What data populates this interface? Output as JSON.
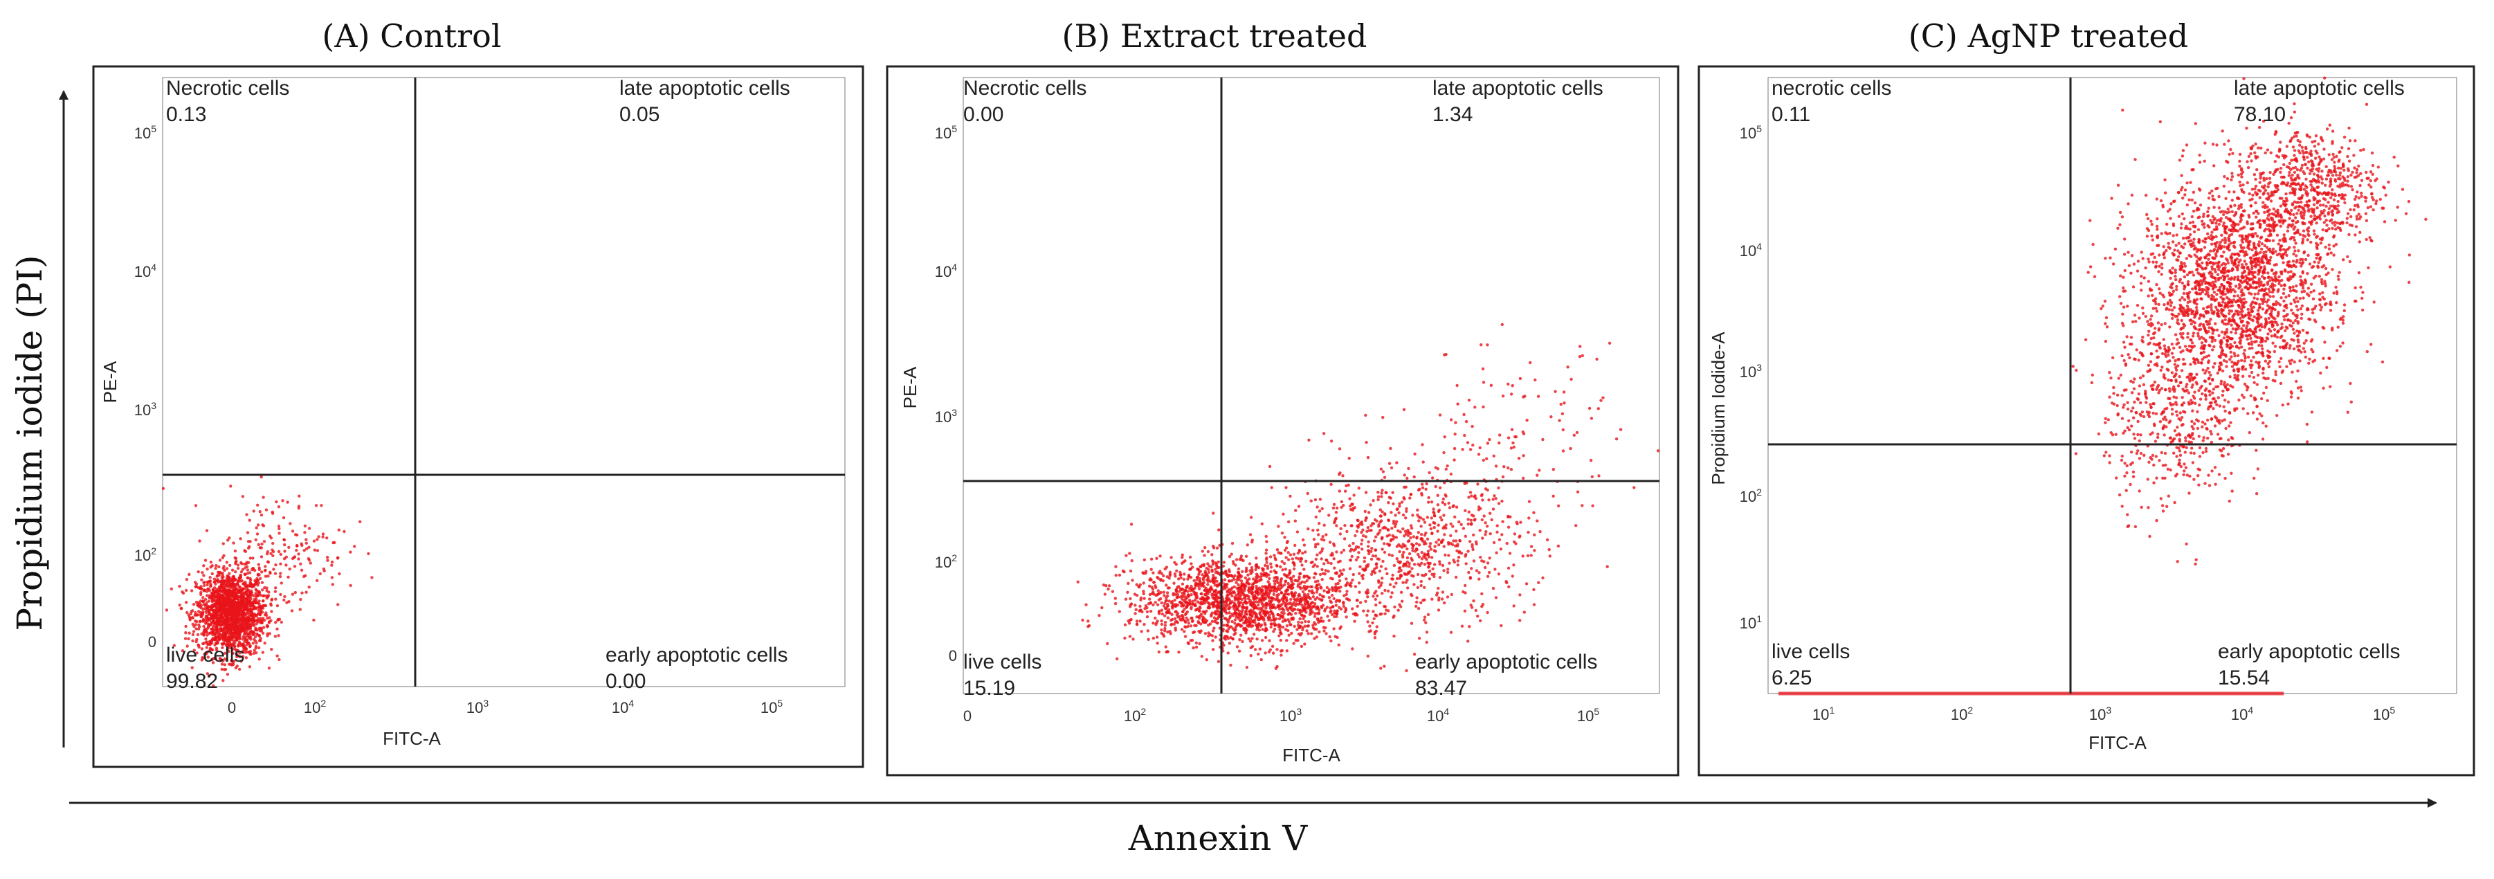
{
  "figure": {
    "global_xlabel": "Annexin V",
    "global_ylabel": "Propidium iodide (PI)"
  },
  "chart_data": [
    {
      "type": "scatter",
      "title": "(A) Control",
      "xlabel": "FITC-A",
      "ylabel": "PE-A",
      "x_ticks": [
        {
          "base": "0",
          "exp": ""
        },
        {
          "base": "10",
          "exp": "2"
        },
        {
          "base": "10",
          "exp": "3"
        },
        {
          "base": "10",
          "exp": "4"
        },
        {
          "base": "10",
          "exp": "5"
        }
      ],
      "y_ticks": [
        {
          "base": "0",
          "exp": ""
        },
        {
          "base": "10",
          "exp": "2"
        },
        {
          "base": "10",
          "exp": "3"
        },
        {
          "base": "10",
          "exp": "4"
        },
        {
          "base": "10",
          "exp": "5"
        }
      ],
      "quadrants": {
        "top_left": {
          "label": "Necrotic cells",
          "value": "0.13"
        },
        "top_right": {
          "label": "late apoptotic cells",
          "value": "0.05"
        },
        "bottom_left": {
          "label": "live cells",
          "value": "99.82"
        },
        "bottom_right": {
          "label": "early apoptotic cells",
          "value": "0.00"
        }
      },
      "dot_color": "#e8141a",
      "populations": [
        {
          "cx": 0.1,
          "cy": 0.12,
          "sx": 0.025,
          "sy": 0.035,
          "n": 1800
        },
        {
          "cx": 0.17,
          "cy": 0.22,
          "sx": 0.05,
          "sy": 0.05,
          "n": 200
        }
      ]
    },
    {
      "type": "scatter",
      "title": "(B) Extract treated",
      "xlabel": "FITC-A",
      "ylabel": "PE-A",
      "x_ticks": [
        {
          "base": "0",
          "exp": ""
        },
        {
          "base": "10",
          "exp": "2"
        },
        {
          "base": "10",
          "exp": "3"
        },
        {
          "base": "10",
          "exp": "4"
        },
        {
          "base": "10",
          "exp": "5"
        }
      ],
      "y_ticks": [
        {
          "base": "0",
          "exp": ""
        },
        {
          "base": "10",
          "exp": "2"
        },
        {
          "base": "10",
          "exp": "3"
        },
        {
          "base": "10",
          "exp": "4"
        },
        {
          "base": "10",
          "exp": "5"
        }
      ],
      "quadrants": {
        "top_left": {
          "label": "Necrotic cells",
          "value": "0.00"
        },
        "top_right": {
          "label": "late apoptotic cells",
          "value": "1.34"
        },
        "bottom_left": {
          "label": "live cells",
          "value": "15.19"
        },
        "bottom_right": {
          "label": "early apoptotic cells",
          "value": "83.47"
        }
      },
      "dot_color": "#e8141a",
      "populations": [
        {
          "cx": 0.4,
          "cy": 0.15,
          "sx": 0.08,
          "sy": 0.035,
          "n": 1800
        },
        {
          "cx": 0.63,
          "cy": 0.24,
          "sx": 0.09,
          "sy": 0.06,
          "n": 800
        },
        {
          "cx": 0.78,
          "cy": 0.4,
          "sx": 0.08,
          "sy": 0.08,
          "n": 150
        }
      ]
    },
    {
      "type": "scatter",
      "title": "(C) AgNP treated",
      "xlabel": "FITC-A",
      "ylabel": "Propidium Iodide-A",
      "x_ticks": [
        {
          "base": "10",
          "exp": "1"
        },
        {
          "base": "10",
          "exp": "2"
        },
        {
          "base": "10",
          "exp": "3"
        },
        {
          "base": "10",
          "exp": "4"
        },
        {
          "base": "10",
          "exp": "5"
        }
      ],
      "y_ticks": [
        {
          "base": "10",
          "exp": "1"
        },
        {
          "base": "10",
          "exp": "2"
        },
        {
          "base": "10",
          "exp": "3"
        },
        {
          "base": "10",
          "exp": "4"
        },
        {
          "base": "10",
          "exp": "5"
        }
      ],
      "quadrants": {
        "top_left": {
          "label": "necrotic cells",
          "value": "0.11"
        },
        "top_right": {
          "label": "late apoptotic cells",
          "value": "78.10"
        },
        "bottom_left": {
          "label": "live cells",
          "value": "6.25"
        },
        "bottom_right": {
          "label": "early apoptotic cells",
          "value": "15.54"
        }
      },
      "dot_color": "#e8141a",
      "populations": [
        {
          "cx": 0.68,
          "cy": 0.66,
          "sx": 0.07,
          "sy": 0.09,
          "n": 2200
        },
        {
          "cx": 0.79,
          "cy": 0.82,
          "sx": 0.05,
          "sy": 0.05,
          "n": 600
        },
        {
          "cx": 0.59,
          "cy": 0.46,
          "sx": 0.05,
          "sy": 0.08,
          "n": 500
        }
      ]
    }
  ]
}
